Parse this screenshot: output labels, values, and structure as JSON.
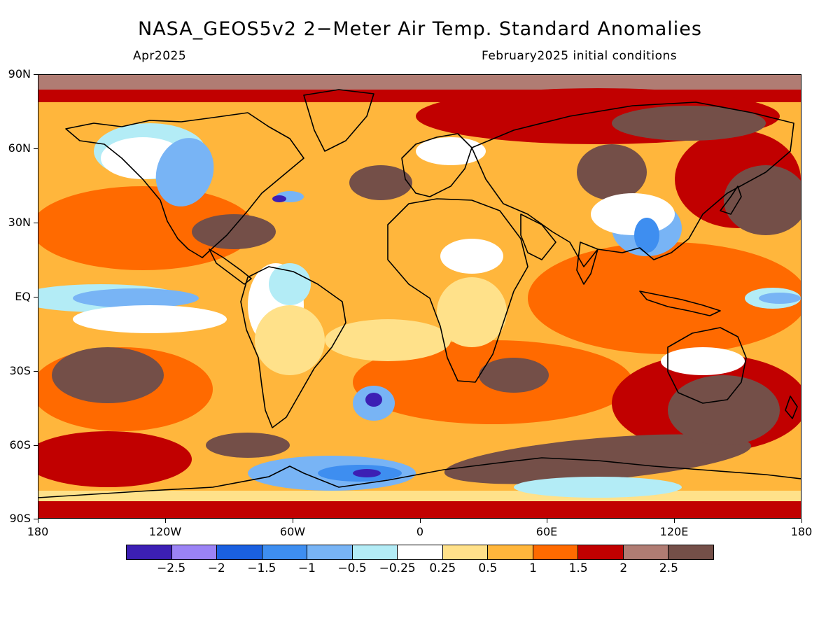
{
  "title": "NASA_GEOS5v2 2−Meter Air Temp. Standard Anomalies",
  "subtitle_left": "Apr2025",
  "subtitle_right": "February2025 initial conditions",
  "y_axis_labels": [
    "90N",
    "60N",
    "30N",
    "EQ",
    "30S",
    "60S",
    "90S"
  ],
  "x_axis_labels": [
    "180",
    "120W",
    "60W",
    "0",
    "60E",
    "120E",
    "180"
  ],
  "colorbar": {
    "colors": [
      "#3c1fb4",
      "#9b83f5",
      "#1a60e0",
      "#3e8ef0",
      "#78b4f5",
      "#b3ecf6",
      "#ffffff",
      "#ffe18a",
      "#ffb63c",
      "#ff6a00",
      "#c10000",
      "#b07c73",
      "#744f48"
    ],
    "labels": [
      "−2.5",
      "−2",
      "−1.5",
      "−1",
      "−0.5",
      "−0.25",
      "0.25",
      "0.5",
      "1",
      "1.5",
      "2",
      "2.5"
    ]
  },
  "map_layer_colors": {
    "base": "#ffb63c",
    "warm_strong": "#c10000",
    "warm_moderate": "#ff6a00",
    "warm_extreme": "#744f48",
    "warm_high": "#b07c73",
    "cool_light": "#b3ecf6",
    "cool_moderate": "#78b4f5",
    "cool_strong": "#3e8ef0",
    "cool_extreme": "#3c1fb4",
    "neutral": "#ffffff",
    "slight_warm": "#ffe18a",
    "coastline": "#000000"
  }
}
